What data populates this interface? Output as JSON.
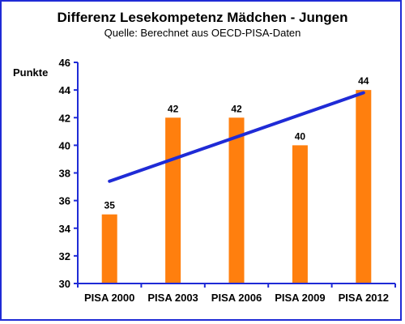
{
  "chart_data": {
    "type": "bar",
    "title": "Differenz Lesekompetenz Mädchen - Jungen",
    "subtitle": "Quelle: Berechnet aus OECD-PISA-Daten",
    "ylabel": "Punkte",
    "xlabel": "",
    "categories": [
      "PISA 2000",
      "PISA 2003",
      "PISA 2006",
      "PISA 2009",
      "PISA 2012"
    ],
    "values": [
      35,
      42,
      42,
      40,
      44
    ],
    "data_labels": [
      "35",
      "42",
      "42",
      "40",
      "44"
    ],
    "yticks": [
      "30",
      "32",
      "34",
      "36",
      "38",
      "40",
      "42",
      "44",
      "46"
    ],
    "ylim": [
      30,
      46
    ],
    "trendline": {
      "start": 37.4,
      "end": 43.8
    },
    "grid": false,
    "colors": {
      "bar": "#ff7f0e",
      "trend": "#1f2bd6",
      "axis": "#1f2bd6",
      "frame": "#1f2bd6"
    }
  }
}
